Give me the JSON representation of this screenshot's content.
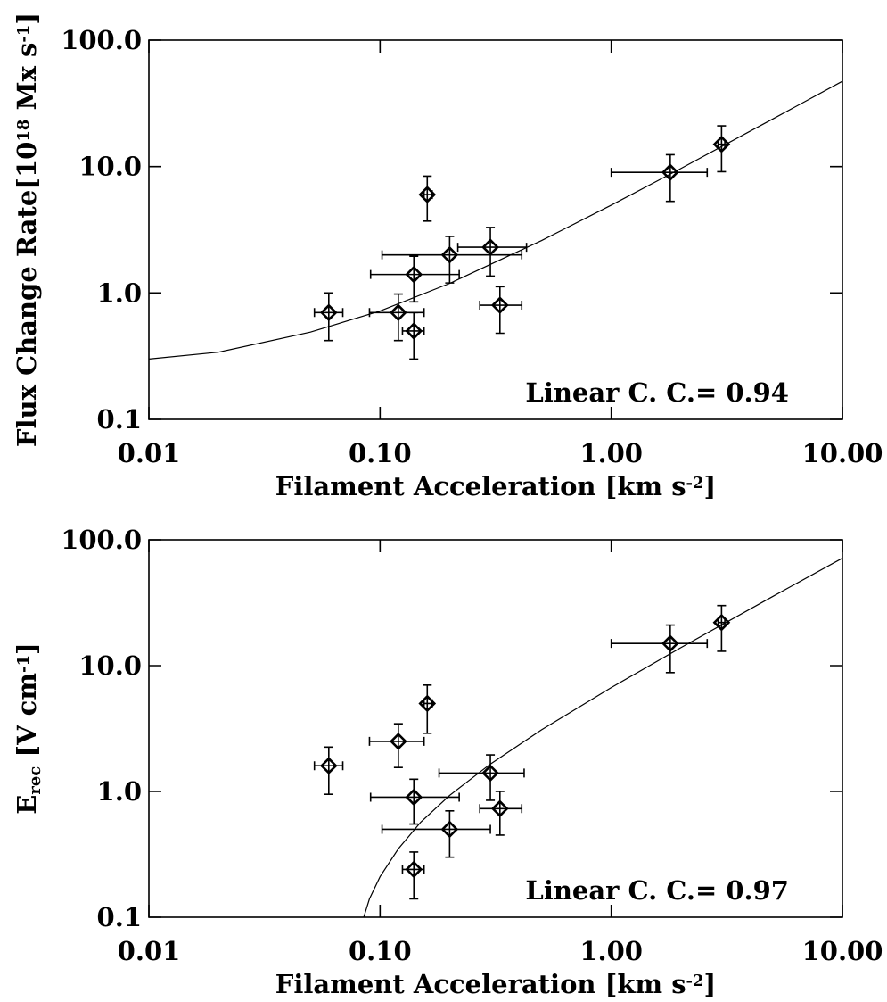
{
  "chart_data": [
    {
      "type": "scatter",
      "xscale": "log",
      "yscale": "log",
      "color": "#000000",
      "xlim": [
        0.01,
        10
      ],
      "ylim": [
        0.1,
        100
      ],
      "xticks": [
        0.01,
        {
          "value": 0.1,
          "label": "0.10"
        },
        {
          "value": 1,
          "label": "1.00"
        },
        {
          "value": 10,
          "label": "10.00"
        }
      ],
      "yticks": [
        0.1,
        {
          "value": 1,
          "label": "1.0"
        },
        {
          "value": 10,
          "label": "10.0"
        },
        {
          "value": 100,
          "label": "100.0"
        }
      ],
      "xlabel": [
        {
          "text": "Filament Acceleration [km s"
        },
        {
          "text": "-2",
          "shift": "sup"
        },
        {
          "text": "]"
        }
      ],
      "ylabel": [
        {
          "text": "Flux Change Rate[10"
        },
        {
          "text": "18",
          "shift": "sup"
        },
        {
          "text": " Mx s"
        },
        {
          "text": "-1",
          "shift": "sup"
        },
        {
          "text": "]"
        }
      ],
      "annotation": "Linear C. C.= 0.94",
      "points": {
        "x": [
          0.06,
          0.12,
          0.14,
          0.14,
          0.16,
          0.2,
          0.3,
          0.33,
          1.8,
          3.0
        ],
        "x_lower": [
          0.052,
          0.09,
          0.091,
          0.125,
          0.155,
          0.102,
          0.217,
          0.27,
          1.0,
          2.9
        ],
        "x_upper": [
          0.069,
          0.155,
          0.22,
          0.155,
          0.168,
          0.41,
          0.43,
          0.41,
          2.6,
          3.1
        ],
        "y": [
          0.7,
          0.7,
          1.4,
          0.5,
          6.0,
          2.0,
          2.3,
          0.8,
          9.0,
          15
        ],
        "y_lower": [
          0.42,
          0.42,
          0.85,
          0.3,
          3.7,
          1.2,
          1.36,
          0.48,
          5.3,
          9.1
        ],
        "y_upper": [
          1.0,
          0.98,
          1.95,
          0.7,
          8.4,
          2.8,
          3.3,
          1.12,
          12.4,
          21
        ]
      },
      "fit": {
        "x": [
          0.01,
          0.02,
          0.05,
          0.1,
          0.2,
          0.5,
          1,
          2,
          5,
          10
        ],
        "y": [
          0.3,
          0.34,
          0.49,
          0.72,
          1.19,
          2.6,
          4.95,
          9.65,
          23.8,
          47.3
        ]
      }
    },
    {
      "type": "scatter",
      "xscale": "log",
      "yscale": "log",
      "color": "#000000",
      "xlim": [
        0.01,
        10
      ],
      "ylim": [
        0.1,
        100
      ],
      "xticks": [
        0.01,
        {
          "value": 0.1,
          "label": "0.10"
        },
        {
          "value": 1,
          "label": "1.00"
        },
        {
          "value": 10,
          "label": "10.00"
        }
      ],
      "yticks": [
        0.1,
        {
          "value": 1,
          "label": "1.0"
        },
        {
          "value": 10,
          "label": "10.0"
        },
        {
          "value": 100,
          "label": "100.0"
        }
      ],
      "xlabel": [
        {
          "text": "Filament Acceleration [km s"
        },
        {
          "text": "-2",
          "shift": "sup"
        },
        {
          "text": "]"
        }
      ],
      "ylabel": [
        {
          "text": "E"
        },
        {
          "text": "rec",
          "shift": "sub"
        },
        {
          "text": " [V cm"
        },
        {
          "text": "-1",
          "shift": "sup"
        },
        {
          "text": "]"
        }
      ],
      "annotation": "Linear C. C.= 0.97",
      "points": {
        "x": [
          0.06,
          0.12,
          0.14,
          0.14,
          0.16,
          0.2,
          0.3,
          0.33,
          1.8,
          3.0
        ],
        "x_lower": [
          0.052,
          0.09,
          0.091,
          0.125,
          0.155,
          0.102,
          0.18,
          0.27,
          1.0,
          2.9
        ],
        "x_upper": [
          0.069,
          0.155,
          0.22,
          0.155,
          0.168,
          0.3,
          0.42,
          0.41,
          2.6,
          3.1
        ],
        "y": [
          1.6,
          2.5,
          0.9,
          0.24,
          5.0,
          0.5,
          1.4,
          0.73,
          15,
          22
        ],
        "y_lower": [
          0.95,
          1.55,
          0.55,
          0.14,
          2.9,
          0.3,
          0.85,
          0.45,
          8.8,
          13
        ],
        "y_upper": [
          2.25,
          3.45,
          1.25,
          0.33,
          7.0,
          0.7,
          1.95,
          1.0,
          21,
          30
        ]
      },
      "fit": {
        "x": [
          0.085,
          0.09,
          0.1,
          0.12,
          0.15,
          0.2,
          0.3,
          0.5,
          1,
          2,
          5,
          10
        ],
        "y": [
          0.1,
          0.14,
          0.21,
          0.35,
          0.57,
          0.93,
          1.65,
          3.09,
          6.69,
          13.9,
          35.5,
          71.5
        ]
      }
    }
  ]
}
